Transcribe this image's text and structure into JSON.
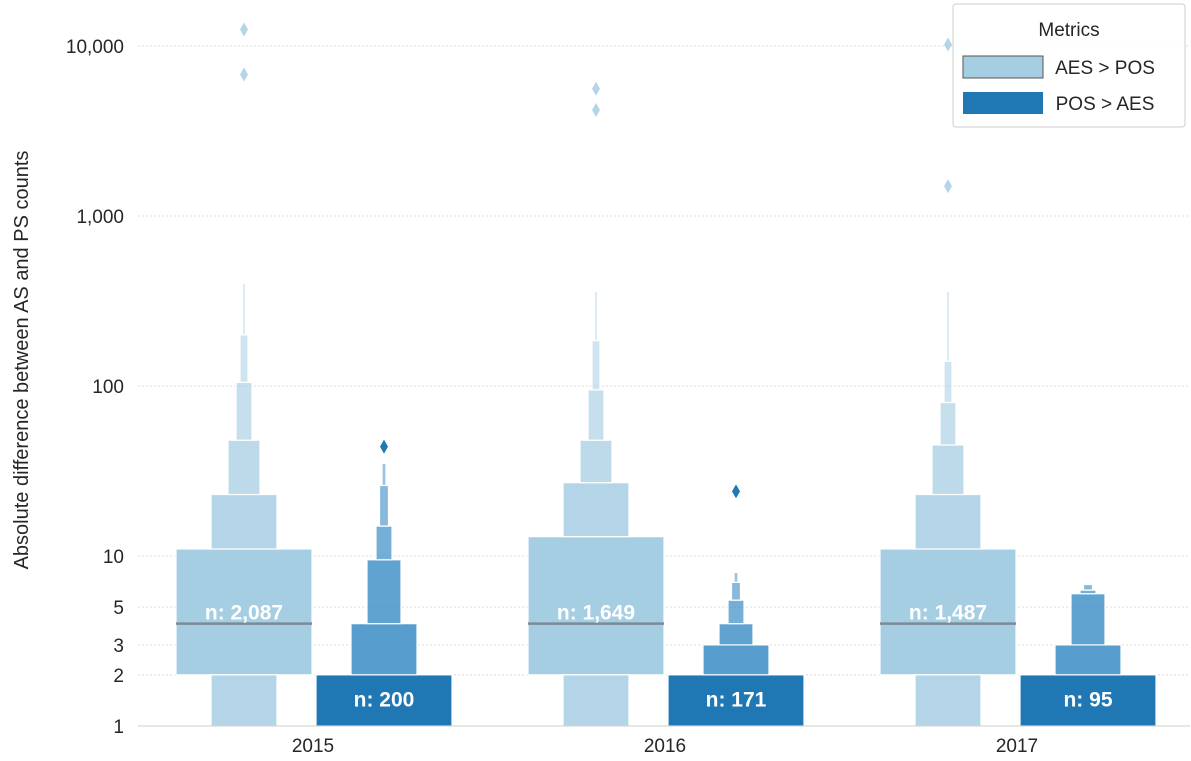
{
  "chart_data": {
    "type": "boxen",
    "y_scale": "log",
    "ylim": [
      1,
      14000
    ],
    "ylabel": "Absolute difference between AS and PS counts",
    "xlabel": "",
    "categories": [
      "2015",
      "2016",
      "2017"
    ],
    "y_ticks": [
      {
        "value": 1,
        "label": "1"
      },
      {
        "value": 2,
        "label": "2"
      },
      {
        "value": 3,
        "label": "3"
      },
      {
        "value": 5,
        "label": "5"
      },
      {
        "value": 10,
        "label": "10"
      },
      {
        "value": 100,
        "label": "100"
      },
      {
        "value": 1000,
        "label": "1,000"
      },
      {
        "value": 10000,
        "label": "10,000"
      }
    ],
    "grid": true,
    "legend": {
      "title": "Metrics",
      "placement": "top-right",
      "entries": [
        {
          "label": "AES > POS",
          "color": "#a6cee3"
        },
        {
          "label": "POS > AES",
          "color": "#1f78b4"
        }
      ]
    },
    "series": [
      {
        "name": "AES > POS",
        "color": "#a6cee3",
        "groups": [
          {
            "category": "2015",
            "n_label": "n: 2,087",
            "median": 4,
            "boxes": [
              [
                2,
                11
              ],
              [
                1,
                2
              ],
              [
                11,
                23
              ],
              [
                23,
                48
              ],
              [
                48,
                105
              ],
              [
                105,
                200
              ],
              [
                200,
                400
              ]
            ],
            "outliers": [
              12500,
              6800
            ]
          },
          {
            "category": "2016",
            "n_label": "n: 1,649",
            "median": 4,
            "boxes": [
              [
                2,
                13
              ],
              [
                1,
                2
              ],
              [
                13,
                27
              ],
              [
                27,
                48
              ],
              [
                48,
                95
              ],
              [
                95,
                185
              ],
              [
                185,
                360
              ]
            ],
            "outliers": [
              5600,
              4200
            ]
          },
          {
            "category": "2017",
            "n_label": "n: 1,487",
            "median": 4,
            "boxes": [
              [
                2,
                11
              ],
              [
                1,
                2
              ],
              [
                11,
                23
              ],
              [
                23,
                45
              ],
              [
                45,
                80
              ],
              [
                80,
                140
              ],
              [
                140,
                360
              ]
            ],
            "outliers": [
              10200,
              1500
            ]
          }
        ]
      },
      {
        "name": "POS > AES",
        "color": "#1f78b4",
        "groups": [
          {
            "category": "2015",
            "n_label": "n: 200",
            "median": 1,
            "boxes": [
              [
                1,
                2
              ],
              [
                2,
                4
              ],
              [
                4,
                9.5
              ],
              [
                9.5,
                15
              ],
              [
                15,
                26
              ],
              [
                26,
                35
              ]
            ],
            "outliers": [
              44
            ]
          },
          {
            "category": "2016",
            "n_label": "n: 171",
            "median": 1,
            "boxes": [
              [
                1,
                2
              ],
              [
                2,
                3
              ],
              [
                3,
                4
              ],
              [
                4,
                5.5
              ],
              [
                5.5,
                7
              ],
              [
                7,
                8
              ]
            ],
            "outliers": [
              24
            ]
          },
          {
            "category": "2017",
            "n_label": "n: 95",
            "median": 1,
            "boxes": [
              [
                1,
                2
              ],
              [
                2,
                3
              ],
              [
                3,
                6
              ],
              [
                6,
                6.3
              ],
              [
                6.3,
                6.8
              ]
            ],
            "outliers": []
          }
        ]
      }
    ]
  }
}
